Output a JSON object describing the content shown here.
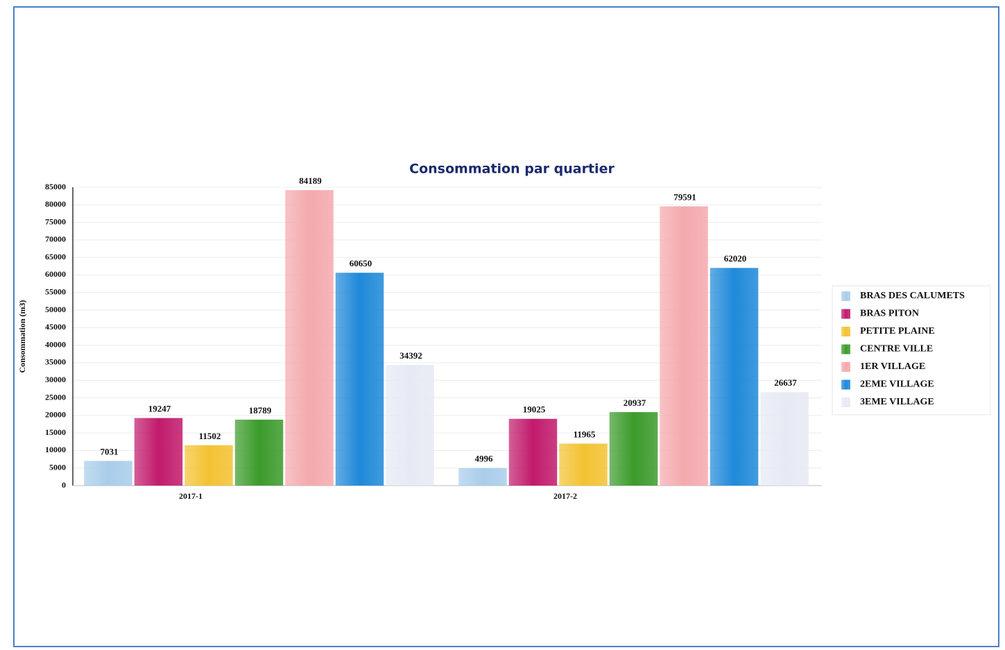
{
  "chart_data": {
    "type": "bar",
    "title": "Consommation par quartier",
    "y_label": "Consommation (m3)",
    "categories": [
      "2017-1",
      "2017-2"
    ],
    "series": [
      {
        "name": "BRAS DES CALUMETS",
        "color": "#a9cdea",
        "values": [
          7031,
          4996
        ]
      },
      {
        "name": "BRAS PITON",
        "color": "#c21a6c",
        "values": [
          19247,
          19025
        ]
      },
      {
        "name": "PETITE PLAINE",
        "color": "#f3c232",
        "values": [
          11502,
          11965
        ]
      },
      {
        "name": "CENTRE VILLE",
        "color": "#3b9b2b",
        "values": [
          18789,
          20937
        ]
      },
      {
        "name": "1ER VILLAGE",
        "color": "#f4a9ad",
        "values": [
          84189,
          79591
        ]
      },
      {
        "name": "2EME VILLAGE",
        "color": "#1f89d9",
        "values": [
          60650,
          62020
        ]
      },
      {
        "name": "3EME VILLAGE",
        "color": "#e6eaf4",
        "values": [
          34392,
          26637
        ]
      }
    ],
    "ylim": [
      0,
      85000
    ],
    "yticks": [
      0,
      5000,
      10000,
      15000,
      20000,
      25000,
      30000,
      35000,
      40000,
      45000,
      50000,
      55000,
      60000,
      65000,
      70000,
      75000,
      80000,
      85000
    ],
    "grid": true,
    "legend": "right"
  }
}
